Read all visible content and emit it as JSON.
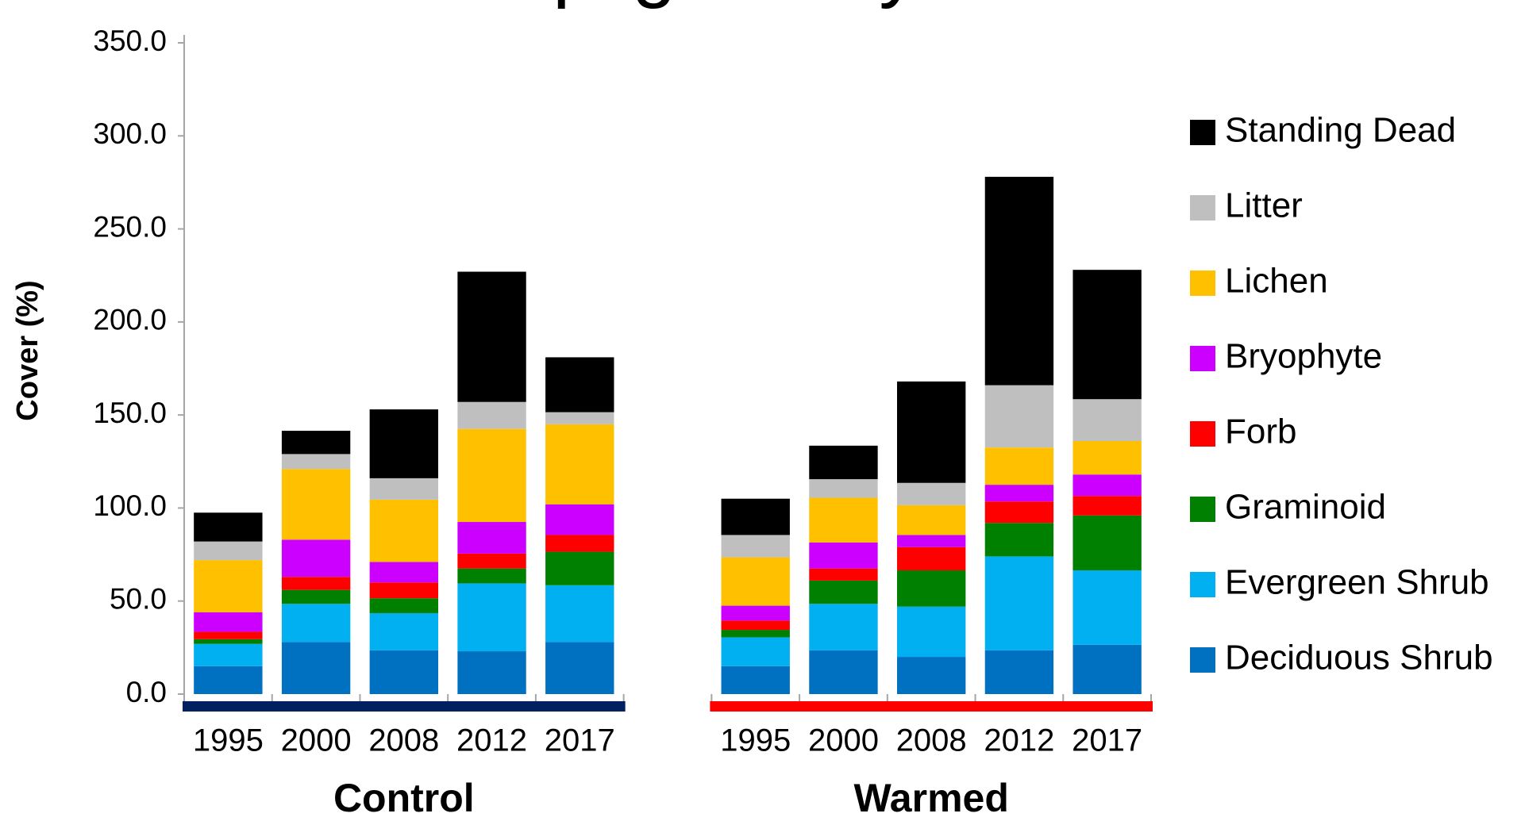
{
  "chart_data": {
    "type": "stacked_bar",
    "title": "Utqiagvik Dry",
    "y_label": "Cover (%)",
    "categories": [
      "1995",
      "2000",
      "2008",
      "2012",
      "2017",
      null,
      "1995",
      "2000",
      "2008",
      "2012",
      "2017"
    ],
    "groups": [
      {
        "name": "Control",
        "color": "#002060"
      },
      {
        "name": "Warmed",
        "color": "#ff0000"
      }
    ],
    "series": [
      {
        "name": "Deciduous Shrub",
        "color": "#0070c0",
        "values": [
          15,
          28,
          23.5,
          23,
          28,
          null,
          15,
          23.5,
          20,
          23.5,
          26.5
        ]
      },
      {
        "name": "Evergreen Shrub",
        "color": "#00b0f0",
        "values": [
          12,
          20.5,
          20,
          36.5,
          30.5,
          null,
          15.5,
          25,
          27,
          50.5,
          40
        ]
      },
      {
        "name": "Graminoid",
        "color": "#008000",
        "values": [
          2.5,
          7.5,
          8,
          8,
          18,
          null,
          4,
          12.5,
          19.5,
          18,
          29.5
        ]
      },
      {
        "name": "Forb",
        "color": "#ff0000",
        "values": [
          4,
          7,
          8.5,
          8,
          9,
          null,
          5,
          6.5,
          12.5,
          11.5,
          10.5
        ]
      },
      {
        "name": "Bryophyte",
        "color": "#cc00ff",
        "values": [
          10.5,
          20,
          11,
          17,
          16.5,
          null,
          8,
          14,
          6.5,
          9,
          11.5
        ]
      },
      {
        "name": "Lichen",
        "color": "#ffc000",
        "values": [
          28,
          38,
          33.5,
          50,
          43,
          null,
          26,
          24,
          16,
          20,
          18
        ]
      },
      {
        "name": "Litter",
        "color": "#bfbfbf",
        "values": [
          10,
          8,
          11.5,
          14.5,
          6.5,
          null,
          12,
          10,
          12,
          33.5,
          22.5
        ]
      },
      {
        "name": "Standing Dead",
        "color": "#000000",
        "values": [
          15.5,
          12.5,
          37,
          70,
          29.5,
          null,
          19.5,
          18,
          54.5,
          112,
          69.5
        ]
      }
    ],
    "ylim": [
      0,
      350
    ],
    "yticks": [
      {
        "value": 0,
        "label": "0.0"
      },
      {
        "value": 50,
        "label": "50.0"
      },
      {
        "value": 100,
        "label": "100.0"
      },
      {
        "value": 150,
        "label": "150.0"
      },
      {
        "value": 200,
        "label": "200.0"
      },
      {
        "value": 250,
        "label": "250.0"
      },
      {
        "value": 300,
        "label": "300.0"
      },
      {
        "value": 350,
        "label": "350.0"
      }
    ],
    "grid": false,
    "legend": "right"
  }
}
